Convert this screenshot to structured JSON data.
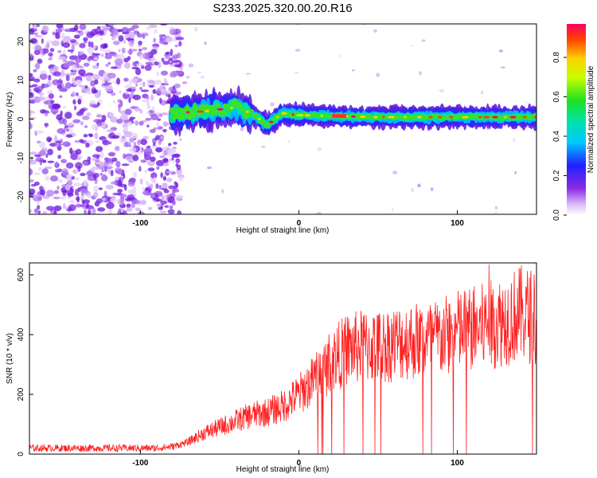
{
  "title": "S233.2025.320.00.20.R16",
  "chart_data": [
    {
      "type": "heatmap",
      "xlabel": "Height of straight line (km)",
      "ylabel": "Frequency (Hz)",
      "xlim": [
        -170,
        150
      ],
      "ylim": [
        -24.5,
        24.5
      ],
      "xticks": [
        -100,
        0,
        100
      ],
      "yticks": [
        -20,
        -10,
        0,
        10,
        20
      ],
      "colorbar": {
        "label": "Normalized spectral amplitude",
        "range": [
          0,
          0.97
        ],
        "ticks": [
          0.0,
          0.2,
          0.4,
          0.6,
          0.8
        ]
      },
      "description_values": {
        "noise_region_x": [
          -170,
          -80
        ],
        "signal_track_x": [
          -80,
          150
        ],
        "signal_track_frequency": [
          {
            "x": -80,
            "y": 1.5
          },
          {
            "x": -60,
            "y": 2.0
          },
          {
            "x": -40,
            "y": 3.0
          },
          {
            "x": -30,
            "y": 1.5
          },
          {
            "x": -20,
            "y": -1.5
          },
          {
            "x": -10,
            "y": 1.5
          },
          {
            "x": 0,
            "y": 1.0
          },
          {
            "x": 50,
            "y": 0.5
          },
          {
            "x": 100,
            "y": 0.5
          },
          {
            "x": 150,
            "y": 0.5
          }
        ]
      }
    },
    {
      "type": "line",
      "xlabel": "Height of straight line (km)",
      "ylabel": "SNR (10 * v/v)",
      "xlim": [
        -170,
        150
      ],
      "ylim": [
        0,
        640
      ],
      "xticks": [
        -100,
        0,
        100
      ],
      "yticks": [
        0,
        200,
        400,
        600
      ],
      "color": "#ff2020",
      "series": [
        {
          "name": "SNR",
          "x": [
            -170,
            -150,
            -130,
            -110,
            -90,
            -80,
            -70,
            -60,
            -50,
            -40,
            -30,
            -20,
            -10,
            0,
            10,
            20,
            30,
            40,
            50,
            60,
            70,
            80,
            90,
            100,
            110,
            120,
            130,
            140,
            150
          ],
          "values": [
            20,
            20,
            20,
            20,
            20,
            25,
            40,
            70,
            90,
            110,
            130,
            140,
            160,
            200,
            250,
            310,
            350,
            360,
            360,
            370,
            380,
            380,
            390,
            410,
            420,
            430,
            450,
            470,
            460
          ]
        }
      ],
      "max_spike": {
        "x": 120,
        "y": 635
      }
    }
  ]
}
